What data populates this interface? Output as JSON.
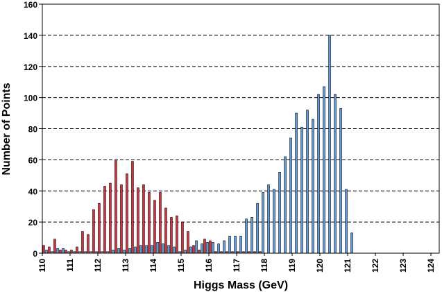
{
  "chart_data": {
    "type": "bar",
    "title": "",
    "xlabel": "Higgs Mass (GeV)",
    "ylabel": "Number of Points",
    "xlim": [
      110,
      124.3
    ],
    "ylim": [
      0,
      160
    ],
    "x_ticks": [
      "110",
      "111",
      "112",
      "113",
      "114",
      "115",
      "116",
      "117",
      "118",
      "119",
      "120",
      "121",
      "122",
      "123",
      "124"
    ],
    "y_ticks": [
      "0",
      "20",
      "40",
      "60",
      "80",
      "100",
      "120",
      "140",
      "160"
    ],
    "grid": "horizontal dashed",
    "bin_width": 0.2,
    "series": [
      {
        "color": "#d8323a",
        "x": [
          110.1,
          110.3,
          110.5,
          110.7,
          110.9,
          111.1,
          111.3,
          111.5,
          111.7,
          111.9,
          112.1,
          112.3,
          112.5,
          112.7,
          112.9,
          113.1,
          113.3,
          113.5,
          113.7,
          113.9,
          114.1,
          114.3,
          114.5,
          114.7,
          114.9,
          115.1,
          115.3,
          115.5,
          115.7,
          115.9,
          116.1,
          116.3,
          116.5,
          116.7,
          116.9,
          117.1,
          117.3,
          117.5,
          117.7,
          117.9,
          118.1,
          118.3,
          118.5,
          118.7,
          118.9
        ],
        "values": [
          5,
          4,
          9,
          2,
          2,
          2,
          4,
          14,
          12,
          28,
          32,
          43,
          45,
          60,
          44,
          51,
          59,
          42,
          44,
          39,
          34,
          39,
          29,
          23,
          24,
          20,
          14,
          5,
          2,
          9,
          8,
          1,
          1,
          1,
          1,
          1,
          1,
          1,
          1,
          1,
          0,
          0,
          0,
          0,
          0
        ]
      },
      {
        "color": "#5b9be0",
        "x": [
          110.1,
          110.3,
          110.5,
          110.7,
          110.9,
          111.1,
          111.3,
          111.5,
          111.7,
          111.9,
          112.1,
          112.3,
          112.5,
          112.7,
          112.9,
          113.1,
          113.3,
          113.5,
          113.7,
          113.9,
          114.1,
          114.3,
          114.5,
          114.7,
          114.9,
          115.1,
          115.3,
          115.5,
          115.7,
          115.9,
          116.1,
          116.3,
          116.5,
          116.7,
          116.9,
          117.1,
          117.3,
          117.5,
          117.7,
          117.9,
          118.1,
          118.3,
          118.5,
          118.7,
          118.9,
          119.1,
          119.3,
          119.5,
          119.7,
          119.9,
          120.1,
          120.3,
          120.5,
          120.7,
          120.9,
          121.1,
          121.3,
          121.5,
          121.7,
          121.9,
          122.1,
          122.3,
          122.5,
          122.7,
          122.9,
          123.1,
          123.3,
          123.5,
          123.7,
          123.9
        ],
        "values": [
          2,
          1,
          3,
          3,
          1,
          1,
          1,
          1,
          1,
          1,
          1,
          1,
          2,
          3,
          2,
          3,
          4,
          5,
          5,
          5,
          7,
          6,
          5,
          4,
          1,
          2,
          4,
          8,
          6,
          7,
          7,
          6,
          8,
          11,
          11,
          11,
          22,
          23,
          32,
          39,
          44,
          41,
          52,
          62,
          74,
          90,
          81,
          92,
          86,
          102,
          107,
          140,
          102,
          93,
          41,
          13,
          0,
          0,
          0,
          0,
          0,
          0,
          0,
          0,
          0,
          0,
          0,
          0,
          0,
          0
        ]
      }
    ]
  }
}
